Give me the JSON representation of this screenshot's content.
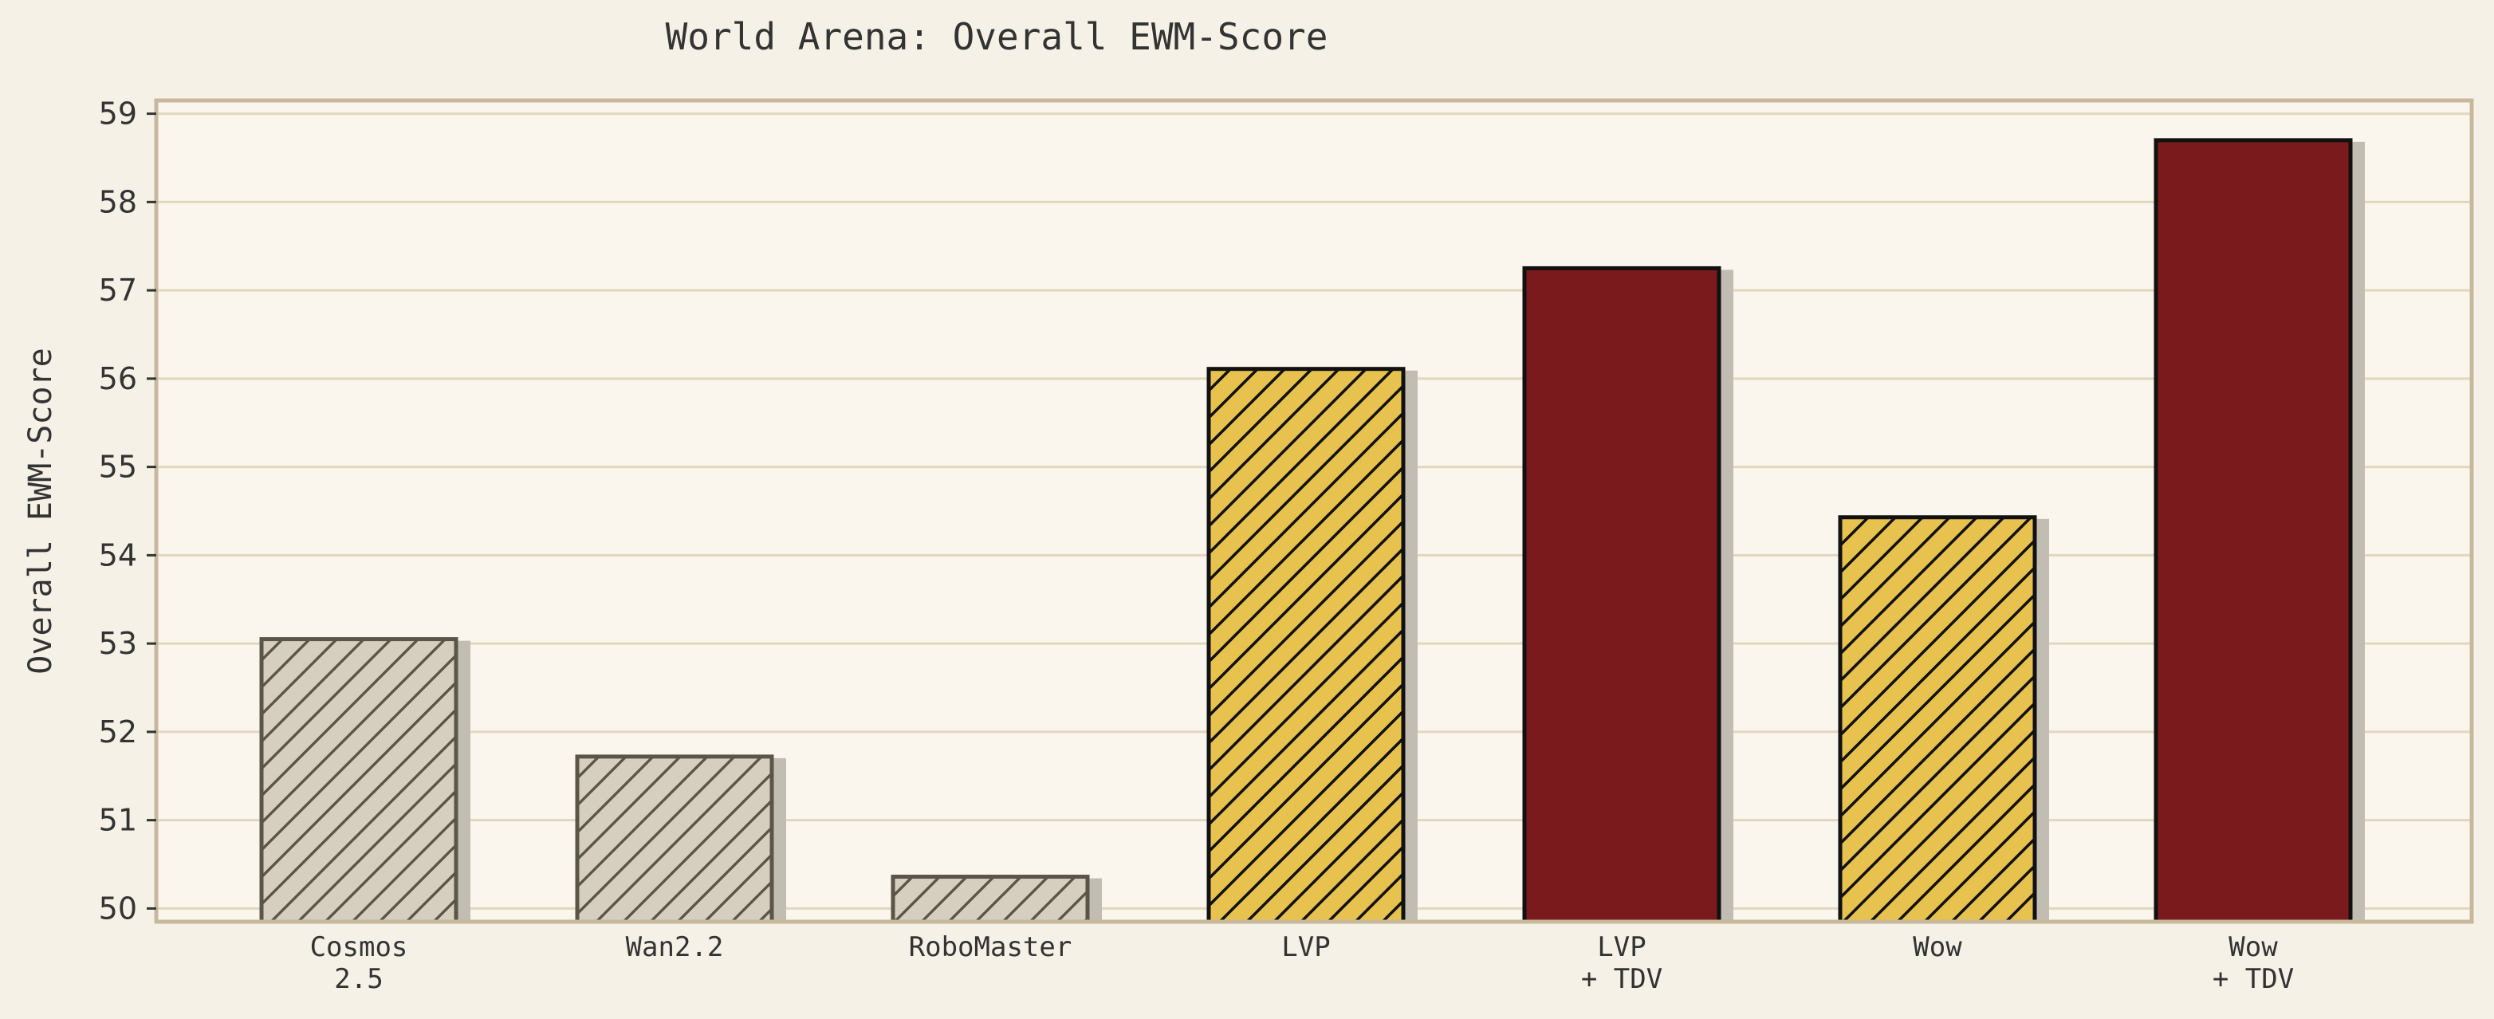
{
  "chart_data": {
    "type": "bar",
    "title": "World Arena: Overall EWM-Score",
    "xlabel": "",
    "ylabel": "Overall EWM-Score",
    "ylim": [
      49.85,
      59.15
    ],
    "yticks": [
      50,
      51,
      52,
      53,
      54,
      55,
      56,
      57,
      58,
      59
    ],
    "grid": "horizontal",
    "categories": [
      [
        "Cosmos",
        "2.5"
      ],
      [
        "Wan2.2"
      ],
      [
        "RoboMaster"
      ],
      [
        "LVP"
      ],
      [
        "LVP",
        "+ TDV"
      ],
      [
        "Wow"
      ],
      [
        "Wow",
        "+ TDV"
      ]
    ],
    "values": [
      53.05,
      51.72,
      50.36,
      56.11,
      57.25,
      54.43,
      58.7
    ],
    "bar_styles": [
      "baseline",
      "baseline",
      "baseline",
      "base",
      "tdv",
      "base",
      "tdv"
    ],
    "colors": {
      "page_background": "#f5f1e6",
      "plot_background": "#faf6ee",
      "frame": "#c8b89c",
      "grid": "#e2d7be",
      "baseline_fill": "#d6cebe",
      "baseline_edge": "#5a5546",
      "base_fill": "#e8c24e",
      "base_edge": "#111111",
      "tdv_fill": "#7a1a1c",
      "tdv_edge": "#111111",
      "shadow": "#c2bdb2",
      "text": "#333333"
    }
  }
}
